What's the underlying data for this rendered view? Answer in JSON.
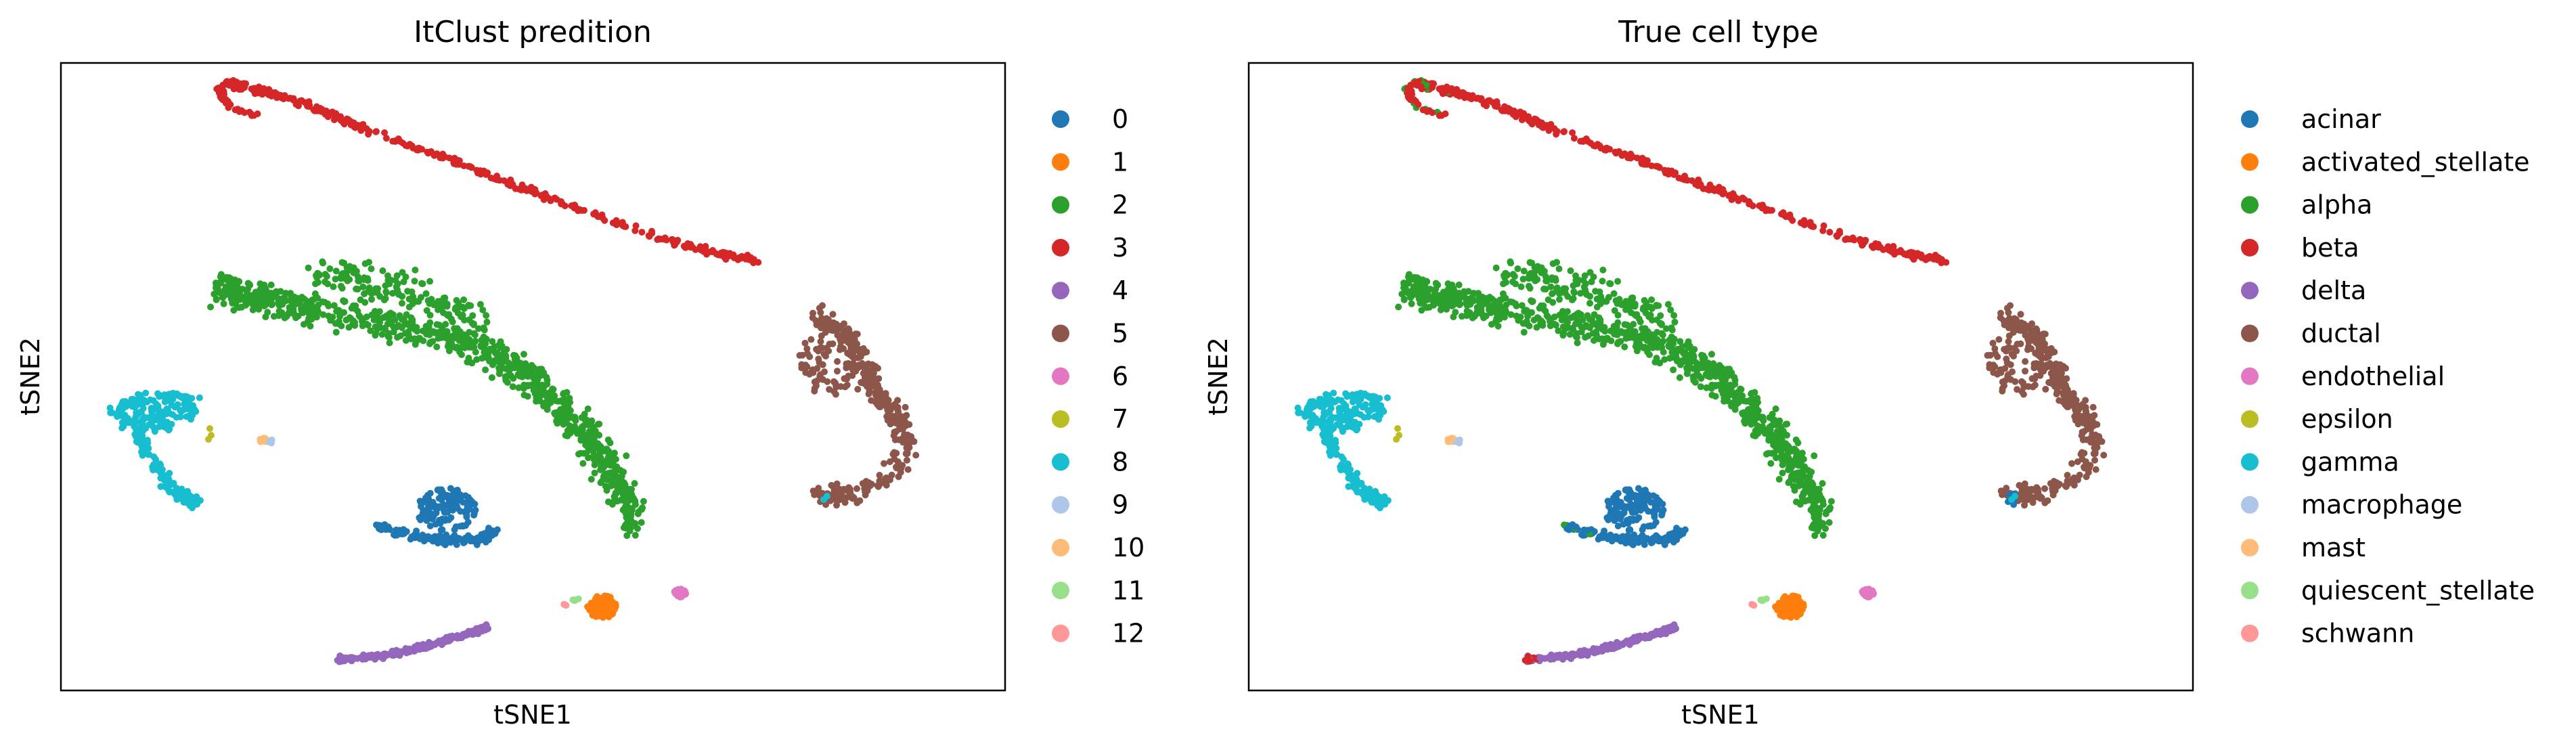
{
  "chart_data": [
    {
      "type": "scatter",
      "title": "ItClust predition",
      "xlabel": "tSNE1",
      "ylabel": "tSNE2",
      "xticks": false,
      "yticks": false,
      "grid": false,
      "legend_position": "right",
      "legend": [
        {
          "label": "0",
          "color": "#1f77b4"
        },
        {
          "label": "1",
          "color": "#ff7f0e"
        },
        {
          "label": "2",
          "color": "#2ca02c"
        },
        {
          "label": "3",
          "color": "#d62728"
        },
        {
          "label": "4",
          "color": "#9467bd"
        },
        {
          "label": "5",
          "color": "#8c564b"
        },
        {
          "label": "6",
          "color": "#e377c2"
        },
        {
          "label": "7",
          "color": "#bcbd22"
        },
        {
          "label": "8",
          "color": "#17becf"
        },
        {
          "label": "9",
          "color": "#aec7e8"
        },
        {
          "label": "10",
          "color": "#ffbb78"
        },
        {
          "label": "11",
          "color": "#98df8a"
        },
        {
          "label": "12",
          "color": "#ff9896"
        }
      ]
    },
    {
      "type": "scatter",
      "title": "True cell type",
      "xlabel": "tSNE1",
      "ylabel": "tSNE2",
      "xticks": false,
      "yticks": false,
      "grid": false,
      "legend_position": "right",
      "legend": [
        {
          "label": "acinar",
          "color": "#1f77b4"
        },
        {
          "label": "activated_stellate",
          "color": "#ff7f0e"
        },
        {
          "label": "alpha",
          "color": "#2ca02c"
        },
        {
          "label": "beta",
          "color": "#d62728"
        },
        {
          "label": "delta",
          "color": "#9467bd"
        },
        {
          "label": "ductal",
          "color": "#8c564b"
        },
        {
          "label": "endothelial",
          "color": "#e377c2"
        },
        {
          "label": "epsilon",
          "color": "#bcbd22"
        },
        {
          "label": "gamma",
          "color": "#17becf"
        },
        {
          "label": "macrophage",
          "color": "#aec7e8"
        },
        {
          "label": "mast",
          "color": "#ffbb78"
        },
        {
          "label": "quiescent_stellate",
          "color": "#98df8a"
        },
        {
          "label": "schwann",
          "color": "#ff9896"
        }
      ]
    }
  ]
}
